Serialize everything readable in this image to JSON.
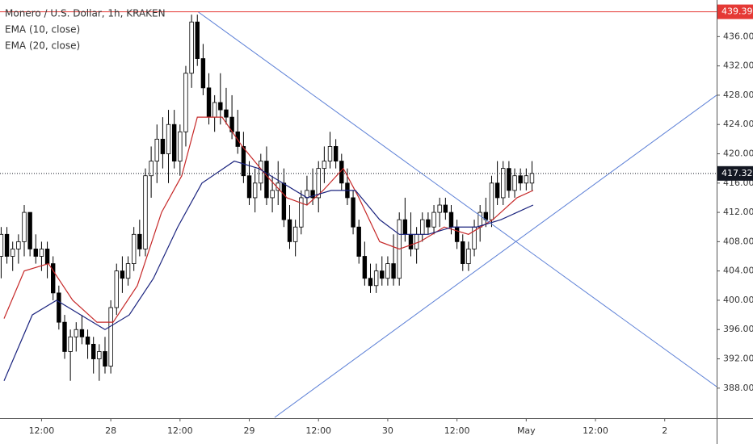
{
  "chart_data": {
    "type": "candlestick",
    "title": "Monero / U.S. Dollar, 1h, KRAKEN",
    "x": [
      5,
      6,
      7,
      8,
      9,
      10,
      11,
      12,
      13,
      14,
      15,
      16,
      17,
      18,
      19,
      20,
      21,
      22,
      23,
      24,
      25,
      26,
      27,
      28,
      29,
      30,
      31,
      32,
      33,
      34,
      35,
      36,
      37,
      38,
      39,
      40,
      41,
      42,
      43,
      44,
      45,
      46,
      47,
      48,
      49,
      50,
      51,
      52,
      53,
      54,
      55,
      56,
      57,
      58,
      59,
      60,
      61,
      62,
      63,
      64,
      65,
      66,
      67,
      68,
      69,
      70,
      71,
      72,
      73,
      74,
      75,
      76,
      77,
      78,
      79,
      80,
      81,
      82,
      83,
      84,
      85,
      86,
      87,
      88,
      89,
      90,
      91,
      92,
      93,
      94,
      95,
      96,
      97
    ],
    "open": [
      406,
      409,
      406,
      407,
      408,
      412,
      407,
      406,
      407,
      405,
      401,
      397,
      393,
      395,
      396,
      395,
      394,
      392,
      393,
      391,
      399,
      404,
      403,
      405,
      409,
      407,
      417,
      419,
      422,
      420,
      424,
      419,
      423,
      431,
      438,
      433,
      429,
      425,
      427,
      426,
      425,
      423,
      421,
      417,
      414,
      416,
      419,
      414,
      415,
      416,
      411,
      408,
      410,
      414,
      415,
      414,
      418,
      419,
      421,
      419,
      416,
      414,
      410,
      406,
      403,
      402,
      404,
      403,
      405,
      403,
      411,
      409,
      407,
      409,
      411,
      410,
      412,
      413,
      412,
      410,
      408,
      405,
      407,
      410,
      412,
      411,
      416,
      414,
      418,
      415,
      417,
      416,
      416
    ],
    "high": [
      410,
      410,
      408,
      409,
      413,
      412,
      409,
      408,
      408,
      406,
      402,
      398,
      396,
      397,
      398,
      396,
      395,
      394,
      395,
      400,
      405,
      406,
      406,
      410,
      411,
      418,
      421,
      424,
      425,
      426,
      426,
      424,
      432,
      439,
      439,
      435,
      431,
      428,
      431,
      429,
      428,
      426,
      423,
      419,
      418,
      420,
      421,
      417,
      419,
      418,
      413,
      411,
      415,
      417,
      418,
      419,
      421,
      423,
      422,
      420,
      418,
      415,
      411,
      408,
      405,
      405,
      406,
      406,
      409,
      412,
      414,
      412,
      410,
      412,
      412,
      413,
      414,
      414,
      413,
      411,
      409,
      408,
      411,
      413,
      414,
      417,
      419,
      419,
      419,
      418,
      418,
      418,
      419
    ],
    "low": [
      403,
      405,
      404,
      405,
      406,
      406,
      405,
      404,
      403,
      400,
      396,
      392,
      389,
      393,
      394,
      392,
      390,
      389,
      390,
      390,
      398,
      401,
      402,
      404,
      406,
      406,
      414,
      416,
      418,
      416,
      418,
      417,
      421,
      429,
      432,
      428,
      424,
      423,
      424,
      424,
      422,
      420,
      416,
      413,
      412,
      415,
      413,
      412,
      413,
      410,
      407,
      406,
      409,
      413,
      413,
      412,
      416,
      418,
      418,
      415,
      413,
      409,
      405,
      402,
      401,
      401,
      402,
      402,
      402,
      402,
      408,
      406,
      405,
      408,
      409,
      409,
      410,
      411,
      409,
      407,
      404,
      404,
      406,
      408,
      410,
      410,
      413,
      413,
      414,
      414,
      415,
      415,
      415
    ],
    "close": [
      409,
      406,
      407,
      408,
      412,
      407,
      406,
      407,
      405,
      401,
      397,
      393,
      395,
      396,
      395,
      394,
      392,
      393,
      391,
      399,
      404,
      403,
      405,
      409,
      407,
      417,
      419,
      422,
      420,
      424,
      419,
      423,
      431,
      438,
      433,
      429,
      425,
      427,
      426,
      425,
      423,
      421,
      417,
      414,
      416,
      419,
      414,
      415,
      416,
      411,
      408,
      410,
      414,
      415,
      414,
      418,
      419,
      421,
      419,
      416,
      414,
      410,
      406,
      403,
      402,
      404,
      403,
      405,
      403,
      411,
      409,
      407,
      409,
      411,
      410,
      412,
      413,
      412,
      410,
      408,
      405,
      407,
      410,
      412,
      411,
      416,
      414,
      418,
      415,
      417,
      416,
      417,
      417.32
    ],
    "series": [
      {
        "name": "EMA (10, close)",
        "color": "#c62828",
        "x": [
          5.5,
          9,
          13.2,
          17.4,
          21.6,
          24.4,
          28.6,
          32.8,
          36.3,
          39,
          43.3,
          46.8,
          51,
          54.5,
          58,
          60.8,
          64.3,
          67,
          70.6,
          74,
          77.6,
          81.8,
          86,
          90.2,
          94.4,
          97.2
        ],
        "values": [
          397.5,
          404,
          405,
          400,
          397,
          397,
          402,
          412,
          417,
          425,
          425,
          421,
          417,
          414,
          413,
          415,
          418,
          414,
          408,
          407,
          408,
          410,
          409,
          411,
          414,
          415
        ]
      },
      {
        "name": "EMA (20, close)",
        "color": "#1a237e",
        "x": [
          5.5,
          10.4,
          14.6,
          18.8,
          23,
          27.2,
          31.4,
          35.6,
          39.8,
          45.4,
          49.6,
          53.8,
          58,
          62.2,
          66.4,
          70.6,
          74,
          79,
          83.2,
          87.4,
          91.6,
          97.2
        ],
        "values": [
          389,
          398,
          400,
          398,
          396,
          398,
          403,
          410,
          416,
          419,
          418,
          416,
          414,
          415,
          415,
          411,
          409,
          409,
          410,
          410,
          411,
          413
        ]
      }
    ],
    "trendlines": [
      {
        "x": [
          39.1,
          129
        ],
        "y": [
          439.4,
          388.2
        ],
        "color": "#5b7fd6"
      },
      {
        "x": [
          52.4,
          129
        ],
        "y": [
          384,
          428
        ],
        "color": "#5b7fd6"
      }
    ],
    "price_lines": [
      {
        "value": 439.39,
        "label": "439.39",
        "color": "#e53935"
      },
      {
        "value": 417.32,
        "label": "417.32",
        "color": "#131722"
      }
    ],
    "xlim": [
      4.8,
      129
    ],
    "xticks": [
      {
        "value": 12,
        "label": "12:00"
      },
      {
        "value": 24,
        "label": "28"
      },
      {
        "value": 36,
        "label": "12:00"
      },
      {
        "value": 48,
        "label": "29"
      },
      {
        "value": 60,
        "label": "12:00"
      },
      {
        "value": 72,
        "label": "30"
      },
      {
        "value": 84,
        "label": "12:00"
      },
      {
        "value": 96,
        "label": "May"
      },
      {
        "value": 108,
        "label": "12:00"
      },
      {
        "value": 120,
        "label": "2"
      }
    ],
    "ylim": [
      383.9,
      441
    ],
    "yticks": [
      {
        "value": 388,
        "label": "388.00"
      },
      {
        "value": 392,
        "label": "392.00"
      },
      {
        "value": 396,
        "label": "396.00"
      },
      {
        "value": 400,
        "label": "400.00"
      },
      {
        "value": 404,
        "label": "404.00"
      },
      {
        "value": 408,
        "label": "408.00"
      },
      {
        "value": 412,
        "label": "412.00"
      },
      {
        "value": 416,
        "label": "416.00"
      },
      {
        "value": 420,
        "label": "420.00"
      },
      {
        "value": 424,
        "label": "424.00"
      },
      {
        "value": 428,
        "label": "428.00"
      },
      {
        "value": 432,
        "label": "432.00"
      },
      {
        "value": 436,
        "label": "436.00"
      }
    ]
  }
}
